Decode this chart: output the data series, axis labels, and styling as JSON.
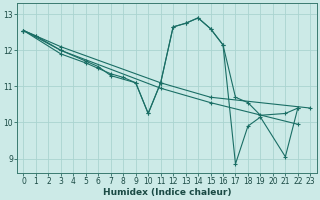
{
  "xlabel": "Humidex (Indice chaleur)",
  "bg_color": "#cceae7",
  "grid_color": "#aad4d0",
  "line_color": "#1a6e65",
  "xlim": [
    -0.5,
    23.5
  ],
  "ylim": [
    8.6,
    13.3
  ],
  "yticks": [
    9,
    10,
    11,
    12,
    13
  ],
  "xticks": [
    0,
    1,
    2,
    3,
    4,
    5,
    6,
    7,
    8,
    9,
    10,
    11,
    12,
    13,
    14,
    15,
    16,
    17,
    18,
    19,
    20,
    21,
    22,
    23
  ],
  "series": [
    {
      "x": [
        0,
        1,
        3,
        11,
        15,
        23
      ],
      "y": [
        12.55,
        12.4,
        12.1,
        11.1,
        10.7,
        10.4
      ]
    },
    {
      "x": [
        0,
        3,
        11,
        15,
        22
      ],
      "y": [
        12.55,
        12.0,
        10.95,
        10.55,
        9.95
      ]
    },
    {
      "x": [
        0,
        1,
        3,
        5,
        6,
        7,
        9,
        10,
        11,
        12,
        13,
        14,
        15,
        16,
        17,
        18,
        19,
        21,
        22
      ],
      "y": [
        12.55,
        12.4,
        12.0,
        11.7,
        11.55,
        11.3,
        11.1,
        10.25,
        11.1,
        12.65,
        12.75,
        12.9,
        12.6,
        12.15,
        10.7,
        10.55,
        10.2,
        10.25,
        10.4
      ]
    },
    {
      "x": [
        0,
        3,
        5,
        6,
        7,
        8,
        9,
        10,
        11,
        12,
        13,
        14,
        15,
        16,
        17,
        18,
        19,
        21,
        22
      ],
      "y": [
        12.55,
        11.9,
        11.65,
        11.5,
        11.35,
        11.25,
        11.1,
        10.25,
        11.1,
        12.65,
        12.75,
        12.9,
        12.6,
        12.15,
        8.85,
        9.9,
        10.15,
        9.05,
        10.4
      ]
    }
  ]
}
